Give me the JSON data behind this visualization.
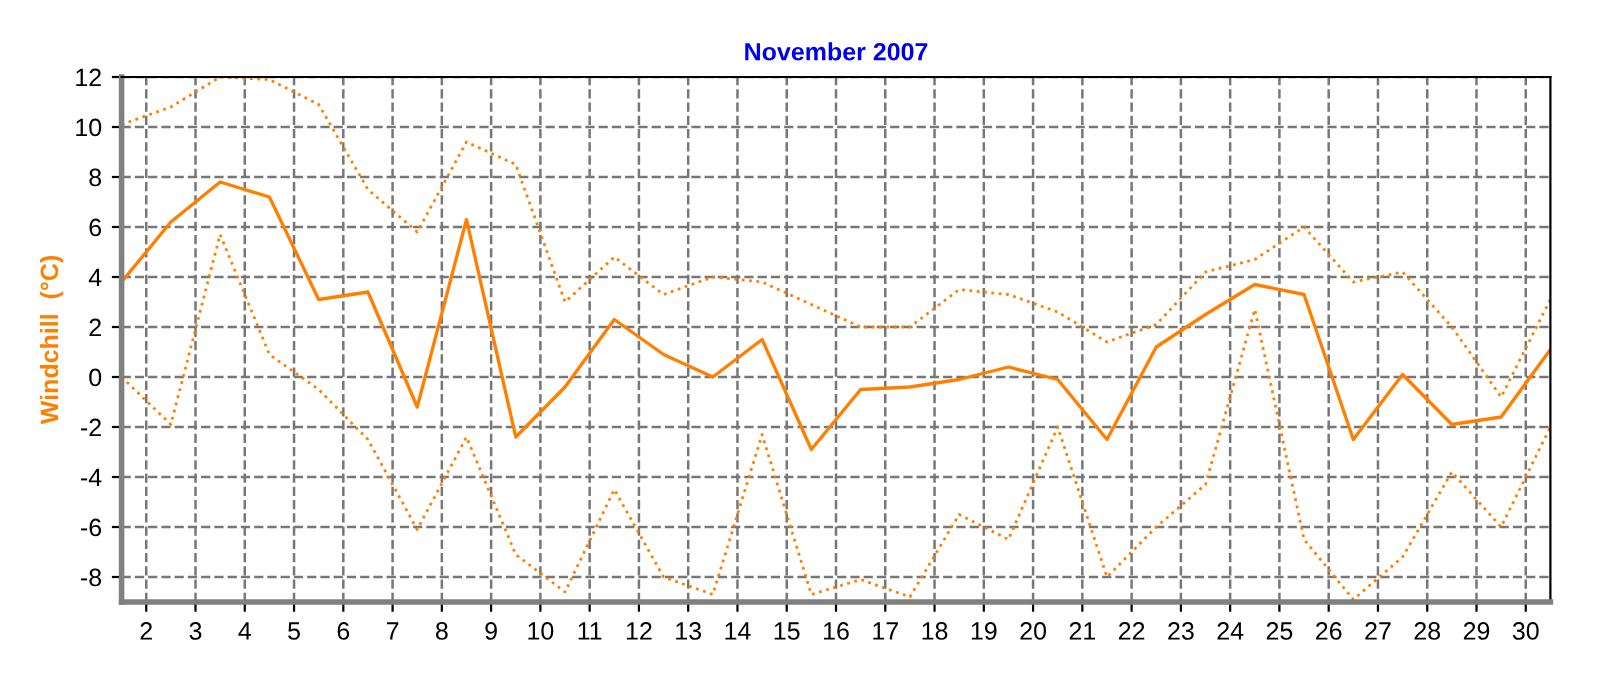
{
  "chart_data": {
    "type": "line",
    "title": "November 2007",
    "ylabel": "Windchill  (°C)",
    "x": [
      1.5,
      2.5,
      3.5,
      4.5,
      5.5,
      6.5,
      7.5,
      8.5,
      9.5,
      10.5,
      11.5,
      12.5,
      13.5,
      14.5,
      15.5,
      16.5,
      17.5,
      18.5,
      19.5,
      20.5,
      21.5,
      22.5,
      23.5,
      24.5,
      25.5,
      26.5,
      27.5,
      28.5,
      29.5,
      30.5
    ],
    "series": [
      {
        "color": "#ff8000",
        "line_style": "dotted",
        "values": [
          10.1,
          10.8,
          12,
          11.9,
          10.9,
          7.5,
          5.8,
          9.4,
          8.5,
          3,
          4.8,
          3.3,
          4,
          3.8,
          2.9,
          2,
          2,
          3.5,
          3.3,
          2.6,
          1.4,
          2.1,
          4.2,
          4.7,
          6,
          3.8,
          4.2,
          2,
          -0.8,
          3.1
        ]
      },
      {
        "color": "#ff8000",
        "line_style": "solid",
        "values": [
          3.8,
          6.2,
          7.8,
          7.2,
          3.1,
          3.4,
          -1.2,
          6.3,
          -2.4,
          -0.4,
          2.3,
          0.9,
          0,
          1.5,
          -2.9,
          -0.5,
          -0.4,
          -0.1,
          0.4,
          -0.1,
          -2.5,
          1.2,
          2.5,
          3.7,
          3.3,
          -2.5,
          0.1,
          -1.9,
          -1.6,
          1.1
        ]
      },
      {
        "color": "#ff8000",
        "line_style": "dotted",
        "values": [
          0,
          -1.9,
          5.7,
          0.9,
          -0.5,
          -2.5,
          -6.1,
          -2.4,
          -7.1,
          -8.6,
          -4.5,
          -8,
          -8.7,
          -2.3,
          -8.7,
          -8.1,
          -8.8,
          -5.5,
          -6.5,
          -2,
          -8,
          -6,
          -4.3,
          2.7,
          -6.5,
          -8.9,
          -7.2,
          -3.8,
          -6,
          -2
        ]
      }
    ],
    "xlim": [
      1.5,
      30.5
    ],
    "xticks": [
      2,
      3,
      4,
      5,
      6,
      7,
      8,
      9,
      10,
      11,
      12,
      13,
      14,
      15,
      16,
      17,
      18,
      19,
      20,
      21,
      22,
      23,
      24,
      25,
      26,
      27,
      28,
      29,
      30
    ],
    "ylim": [
      -9,
      12
    ],
    "yticks": [
      -8,
      -6,
      -4,
      -2,
      0,
      2,
      4,
      6,
      8,
      10,
      12
    ],
    "grid": true,
    "marker": "none",
    "legend": false
  }
}
